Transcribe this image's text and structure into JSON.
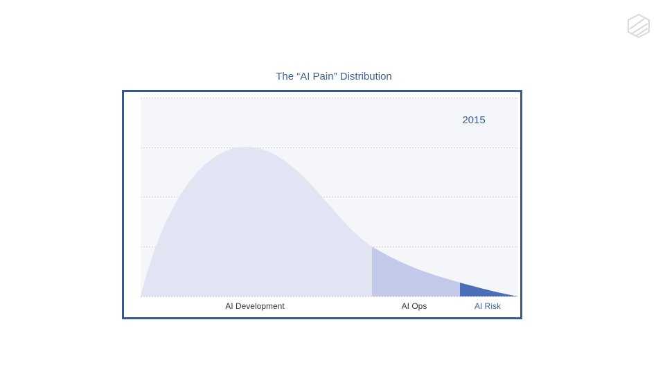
{
  "title": "The “AI Pain” Distribution",
  "year": "2015",
  "regions": [
    "AI Development",
    "AI Ops",
    "AI Risk"
  ]
}
